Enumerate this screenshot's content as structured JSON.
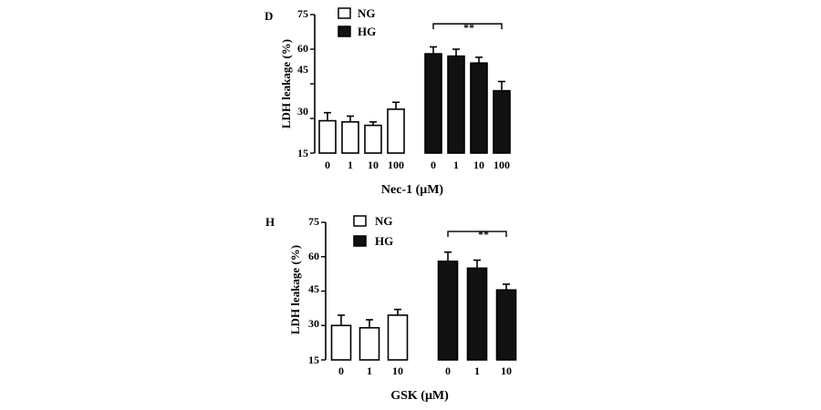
{
  "charts": [
    {
      "panel_label": "D",
      "ylabel": "LDH leakage (%)",
      "xlabel": "Nec-1 (μM)",
      "yticks": [
        "15",
        "30",
        "45",
        "60",
        "75"
      ],
      "legend": [
        "NG",
        "HG"
      ],
      "categories": [
        "0",
        "1",
        "10",
        "100",
        "0",
        "1",
        "10",
        "100"
      ],
      "significance": "**"
    },
    {
      "panel_label": "H",
      "ylabel": "LDH leakage (%)",
      "xlabel": "GSK (μM)",
      "yticks": [
        "15",
        "30",
        "45",
        "60",
        "75"
      ],
      "legend": [
        "NG",
        "HG"
      ],
      "categories": [
        "0",
        "1",
        "10",
        "0",
        "1",
        "10"
      ],
      "significance": "**"
    }
  ],
  "chart_data": [
    {
      "type": "bar",
      "ylim": [
        15,
        75
      ],
      "categories": [
        "0",
        "1",
        "10",
        "100"
      ],
      "series": [
        {
          "name": "NG",
          "values": [
            29,
            28.5,
            27,
            34
          ],
          "errors": [
            3.5,
            2.5,
            1.5,
            3
          ],
          "color": "#ffffff"
        },
        {
          "name": "HG",
          "values": [
            58,
            57,
            54,
            42
          ],
          "errors": [
            3,
            3,
            2.5,
            4
          ],
          "color": "#111111"
        }
      ],
      "bracket": {
        "series": "HG",
        "from_index": 0,
        "to_index": 3,
        "y": 71
      }
    },
    {
      "type": "bar",
      "ylim": [
        15,
        75
      ],
      "categories": [
        "0",
        "1",
        "10"
      ],
      "series": [
        {
          "name": "NG",
          "values": [
            30,
            29,
            34.5
          ],
          "errors": [
            4.5,
            3.5,
            2.5
          ],
          "color": "#ffffff"
        },
        {
          "name": "HG",
          "values": [
            58,
            55,
            45.5
          ],
          "errors": [
            4,
            3.5,
            2.5
          ],
          "color": "#111111"
        }
      ],
      "bracket": {
        "series": "HG",
        "from_index": 0,
        "to_index": 2,
        "y": 71
      }
    }
  ]
}
